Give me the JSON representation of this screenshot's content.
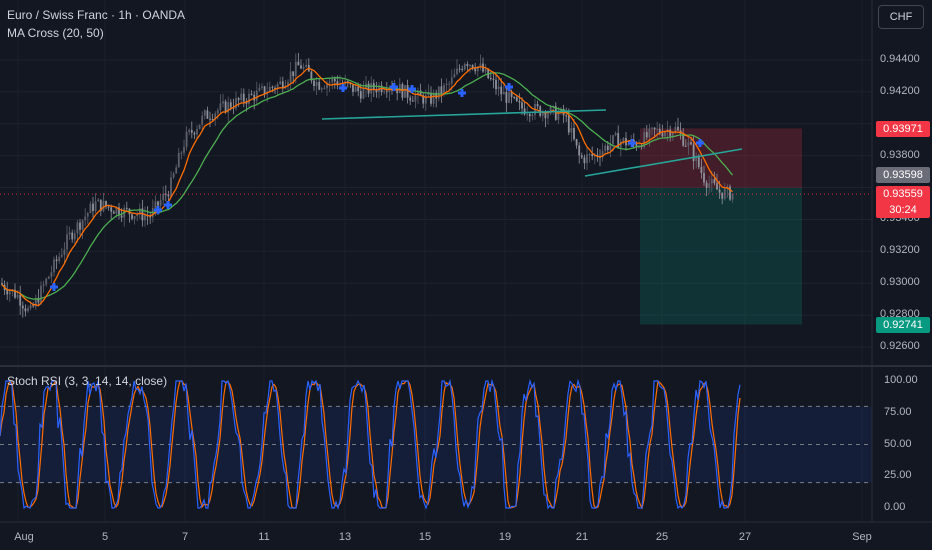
{
  "header": {
    "symbol_line": "Euro / Swiss Franc · 1h · OANDA",
    "indicator_line": "MA Cross (20, 50)"
  },
  "currency_button": {
    "label": "CHF"
  },
  "price_axis": {
    "ticks": [
      "0.94400",
      "0.94200",
      "0.93800",
      "0.93400",
      "0.93200",
      "0.93000",
      "0.92800",
      "0.92600"
    ],
    "tick_values": [
      0.944,
      0.942,
      0.938,
      0.934,
      0.932,
      0.93,
      0.928,
      0.926
    ]
  },
  "price_labels": {
    "stop": {
      "value": "0.93971",
      "color": "#f23645"
    },
    "entry": {
      "value": "0.93598",
      "color": "#6a6d78"
    },
    "last": {
      "value": "0.93559",
      "countdown": "30:24",
      "color": "#f23645"
    },
    "target": {
      "value": "0.92741",
      "color": "#089981"
    }
  },
  "oscillator": {
    "title": "Stoch RSI (3, 3, 14, 14, close)",
    "ticks": [
      "100.00",
      "75.00",
      "50.00",
      "25.00",
      "0.00"
    ],
    "tick_values": [
      100,
      75,
      50,
      25,
      0
    ],
    "upper_band": 80,
    "lower_band": 20,
    "k_color": "#2962ff",
    "d_color": "#ff6d00"
  },
  "time_axis": {
    "labels": [
      "Aug",
      "5",
      "7",
      "11",
      "13",
      "15",
      "19",
      "21",
      "25",
      "27",
      "Sep"
    ]
  },
  "colors": {
    "background": "#131722",
    "candle_up": "#5d606b",
    "candle_down": "#8f929b",
    "ma_fast": "#ff6d00",
    "ma_slow": "#4caf50",
    "cross_marker": "#2962ff",
    "trendline": "#26a69a",
    "stop_zone": "#f23645",
    "target_zone": "#089981"
  }
}
